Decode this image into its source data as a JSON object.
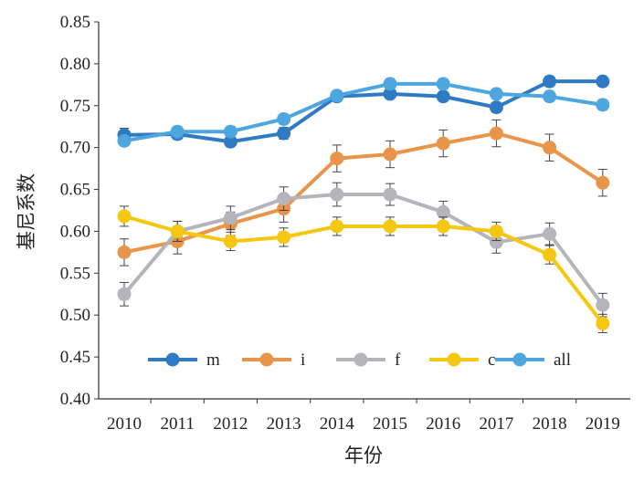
{
  "chart_data": {
    "type": "line",
    "title": "",
    "xlabel": "年份",
    "ylabel": "基尼系数",
    "ylim": [
      0.4,
      0.85
    ],
    "yticks": [
      "0.40",
      "0.45",
      "0.50",
      "0.55",
      "0.60",
      "0.65",
      "0.70",
      "0.75",
      "0.80",
      "0.85"
    ],
    "categories": [
      "2010",
      "2011",
      "2012",
      "2013",
      "2014",
      "2015",
      "2016",
      "2017",
      "2018",
      "2019"
    ],
    "legend_position": "bottom-inside",
    "error_bars": true,
    "series": [
      {
        "name": "m",
        "color": "#2E7BC4",
        "values": [
          0.715,
          0.716,
          0.707,
          0.717,
          0.761,
          0.764,
          0.761,
          0.748,
          0.779,
          0.779
        ],
        "errors": [
          0.008,
          0.006,
          0.006,
          0.007,
          0.005,
          0.005,
          0.005,
          0.006,
          0.006,
          0.005
        ]
      },
      {
        "name": "i",
        "color": "#E8954A",
        "values": [
          0.575,
          0.588,
          0.609,
          0.627,
          0.687,
          0.692,
          0.705,
          0.717,
          0.7,
          0.658
        ],
        "errors": [
          0.016,
          0.015,
          0.014,
          0.016,
          0.016,
          0.016,
          0.016,
          0.016,
          0.016,
          0.016
        ]
      },
      {
        "name": "f",
        "color": "#B4B5BA",
        "values": [
          0.525,
          0.6,
          0.616,
          0.639,
          0.644,
          0.644,
          0.623,
          0.587,
          0.597,
          0.512
        ],
        "errors": [
          0.014,
          0.012,
          0.014,
          0.014,
          0.014,
          0.013,
          0.013,
          0.013,
          0.013,
          0.014
        ]
      },
      {
        "name": "c",
        "color": "#F5C710",
        "values": [
          0.618,
          0.6,
          0.588,
          0.593,
          0.606,
          0.606,
          0.606,
          0.6,
          0.572,
          0.49
        ],
        "errors": [
          0.012,
          0.012,
          0.011,
          0.011,
          0.011,
          0.011,
          0.011,
          0.011,
          0.011,
          0.011
        ]
      },
      {
        "name": "all",
        "color": "#4DA6DE",
        "values": [
          0.708,
          0.719,
          0.719,
          0.734,
          0.762,
          0.776,
          0.776,
          0.764,
          0.761,
          0.751
        ],
        "errors": [
          0.006,
          0.006,
          0.006,
          0.006,
          0.006,
          0.006,
          0.006,
          0.006,
          0.006,
          0.006
        ]
      }
    ]
  }
}
